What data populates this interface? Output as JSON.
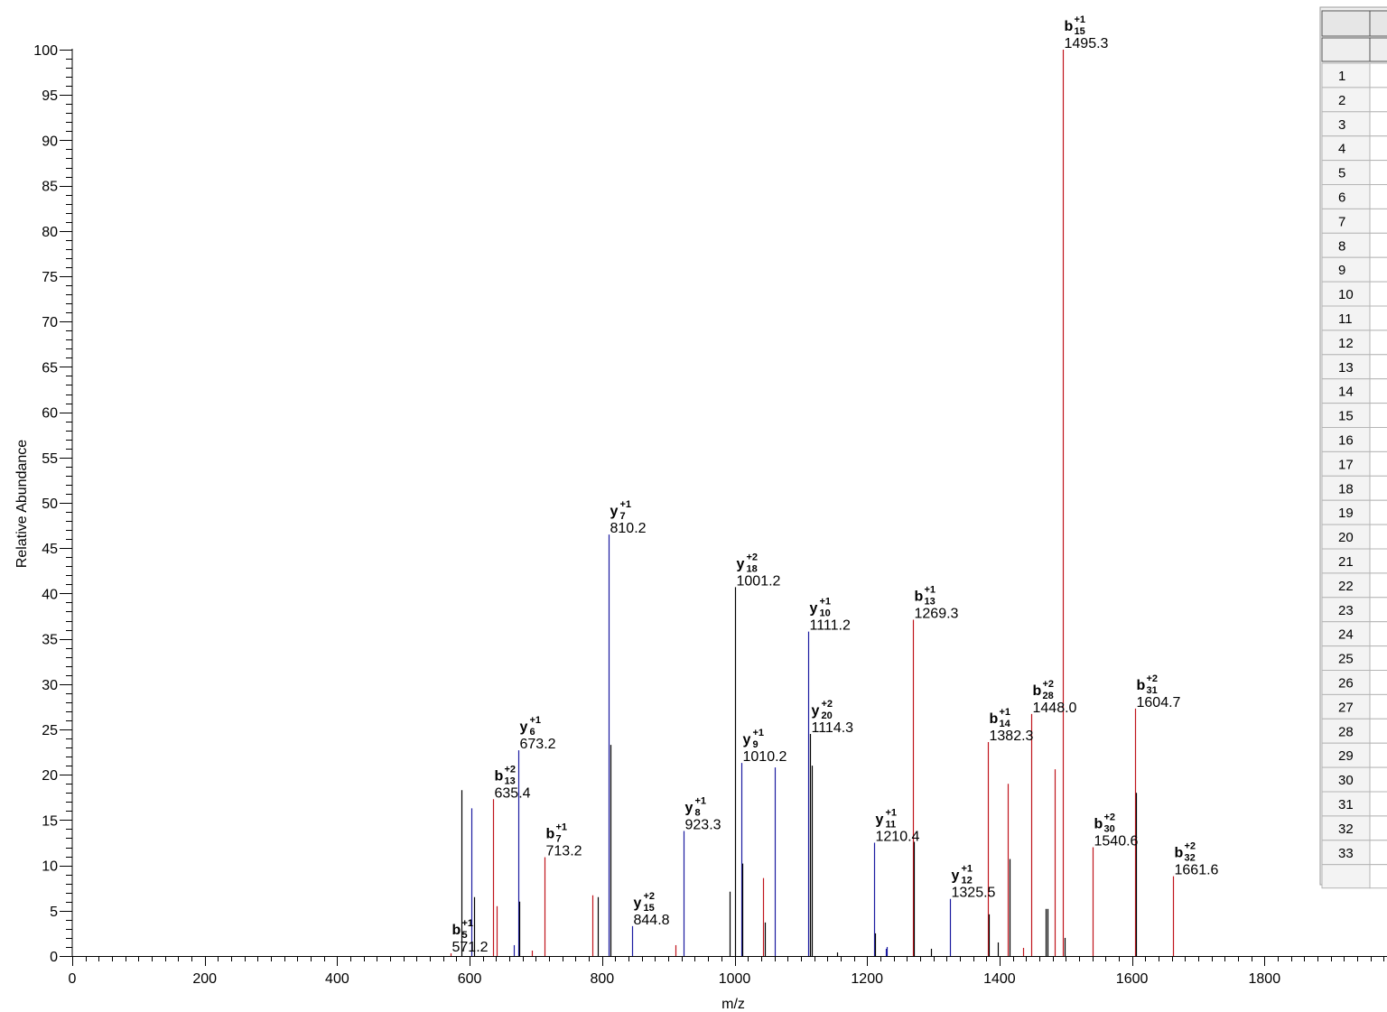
{
  "chart_data": {
    "type": "bar",
    "xlabel": "m/z",
    "ylabel": "Relative Abundance",
    "xlim": [
      0,
      2000
    ],
    "ylim": [
      0,
      100
    ],
    "x_ticks": [
      "0",
      "200",
      "400",
      "600",
      "800",
      "1000",
      "1200",
      "1400",
      "1600",
      "1800"
    ],
    "y_ticks": [
      "0",
      "5",
      "10",
      "15",
      "20",
      "25",
      "30",
      "35",
      "40",
      "45",
      "50",
      "55",
      "60",
      "65",
      "70",
      "75",
      "80",
      "85",
      "90",
      "95",
      "100"
    ],
    "colors": {
      "b": "#c0141c",
      "y": "#1a1aa0",
      "other": "#000000"
    },
    "peaks": [
      {
        "mz": 571.2,
        "intensity": 0.3,
        "series": "b",
        "ion": "b",
        "num": "5",
        "charge": "+1"
      },
      {
        "mz": 588.0,
        "intensity": 18.3,
        "series": "other"
      },
      {
        "mz": 603.0,
        "intensity": 16.3,
        "series": "y"
      },
      {
        "mz": 606.0,
        "intensity": 6.5,
        "series": "other"
      },
      {
        "mz": 635.4,
        "intensity": 17.3,
        "series": "b",
        "ion": "b",
        "num": "13",
        "charge": "+2"
      },
      {
        "mz": 641.0,
        "intensity": 5.5,
        "series": "b"
      },
      {
        "mz": 666.0,
        "intensity": 1.2,
        "series": "y"
      },
      {
        "mz": 673.2,
        "intensity": 22.7,
        "series": "y",
        "ion": "y",
        "num": "6",
        "charge": "+1"
      },
      {
        "mz": 675.0,
        "intensity": 6.0,
        "series": "other"
      },
      {
        "mz": 694.0,
        "intensity": 0.6,
        "series": "b"
      },
      {
        "mz": 713.2,
        "intensity": 10.9,
        "series": "b",
        "ion": "b",
        "num": "7",
        "charge": "+1"
      },
      {
        "mz": 785.0,
        "intensity": 6.7,
        "series": "b"
      },
      {
        "mz": 793.0,
        "intensity": 6.5,
        "series": "other"
      },
      {
        "mz": 810.2,
        "intensity": 46.5,
        "series": "y",
        "ion": "y",
        "num": "7",
        "charge": "+1"
      },
      {
        "mz": 812.0,
        "intensity": 23.3,
        "series": "other"
      },
      {
        "mz": 844.8,
        "intensity": 3.3,
        "series": "y",
        "ion": "y",
        "num": "15",
        "charge": "+2"
      },
      {
        "mz": 911.0,
        "intensity": 1.2,
        "series": "b"
      },
      {
        "mz": 923.3,
        "intensity": 13.8,
        "series": "y",
        "ion": "y",
        "num": "8",
        "charge": "+1"
      },
      {
        "mz": 993.0,
        "intensity": 7.1,
        "series": "other"
      },
      {
        "mz": 1001.2,
        "intensity": 40.7,
        "series": "other",
        "ion": "y",
        "num": "18",
        "charge": "+2"
      },
      {
        "mz": 1010.2,
        "intensity": 21.3,
        "series": "y",
        "ion": "y",
        "num": "9",
        "charge": "+1"
      },
      {
        "mz": 1012.0,
        "intensity": 10.2,
        "series": "other"
      },
      {
        "mz": 1043.0,
        "intensity": 8.6,
        "series": "b"
      },
      {
        "mz": 1045.0,
        "intensity": 3.7,
        "series": "other"
      },
      {
        "mz": 1060.0,
        "intensity": 20.8,
        "series": "y"
      },
      {
        "mz": 1111.2,
        "intensity": 35.8,
        "series": "y",
        "ion": "y",
        "num": "10",
        "charge": "+1"
      },
      {
        "mz": 1114.3,
        "intensity": 24.5,
        "series": "other",
        "ion": "y",
        "num": "20",
        "charge": "+2"
      },
      {
        "mz": 1116.0,
        "intensity": 21.0,
        "series": "other"
      },
      {
        "mz": 1155.0,
        "intensity": 0.4,
        "series": "other"
      },
      {
        "mz": 1210.4,
        "intensity": 12.5,
        "series": "y",
        "ion": "y",
        "num": "11",
        "charge": "+1"
      },
      {
        "mz": 1212.0,
        "intensity": 2.5,
        "series": "other"
      },
      {
        "mz": 1228.0,
        "intensity": 0.8,
        "series": "y"
      },
      {
        "mz": 1230.0,
        "intensity": 1.0,
        "series": "y"
      },
      {
        "mz": 1269.3,
        "intensity": 37.1,
        "series": "b",
        "ion": "b",
        "num": "13",
        "charge": "+1"
      },
      {
        "mz": 1271.0,
        "intensity": 12.6,
        "series": "other"
      },
      {
        "mz": 1296.0,
        "intensity": 0.8,
        "series": "other"
      },
      {
        "mz": 1325.5,
        "intensity": 6.3,
        "series": "y",
        "ion": "y",
        "num": "12",
        "charge": "+1"
      },
      {
        "mz": 1382.3,
        "intensity": 23.6,
        "series": "b",
        "ion": "b",
        "num": "14",
        "charge": "+1"
      },
      {
        "mz": 1384.0,
        "intensity": 4.6,
        "series": "other"
      },
      {
        "mz": 1398.0,
        "intensity": 1.5,
        "series": "other"
      },
      {
        "mz": 1413.0,
        "intensity": 19.0,
        "series": "b"
      },
      {
        "mz": 1415.0,
        "intensity": 10.7,
        "series": "other"
      },
      {
        "mz": 1436.0,
        "intensity": 0.9,
        "series": "b"
      },
      {
        "mz": 1448.0,
        "intensity": 26.7,
        "series": "b",
        "ion": "b",
        "num": "28",
        "charge": "+2"
      },
      {
        "mz": 1470.0,
        "intensity": 5.2,
        "series": "other"
      },
      {
        "mz": 1473.0,
        "intensity": 5.2,
        "series": "other"
      },
      {
        "mz": 1483.0,
        "intensity": 20.6,
        "series": "b"
      },
      {
        "mz": 1495.3,
        "intensity": 100.0,
        "series": "b",
        "ion": "b",
        "num": "15",
        "charge": "+1"
      },
      {
        "mz": 1498.0,
        "intensity": 2.0,
        "series": "other"
      },
      {
        "mz": 1540.6,
        "intensity": 12.0,
        "series": "b",
        "ion": "b",
        "num": "30",
        "charge": "+2"
      },
      {
        "mz": 1604.7,
        "intensity": 27.3,
        "series": "b",
        "ion": "b",
        "num": "31",
        "charge": "+2"
      },
      {
        "mz": 1606.0,
        "intensity": 18.0,
        "series": "other"
      },
      {
        "mz": 1661.6,
        "intensity": 8.8,
        "series": "b",
        "ion": "b",
        "num": "32",
        "charge": "+2"
      }
    ]
  },
  "side_table": {
    "rows": [
      "1",
      "2",
      "3",
      "4",
      "5",
      "6",
      "7",
      "8",
      "9",
      "10",
      "11",
      "12",
      "13",
      "14",
      "15",
      "16",
      "17",
      "18",
      "19",
      "20",
      "21",
      "22",
      "23",
      "24",
      "25",
      "26",
      "27",
      "28",
      "29",
      "30",
      "31",
      "32",
      "33"
    ]
  }
}
